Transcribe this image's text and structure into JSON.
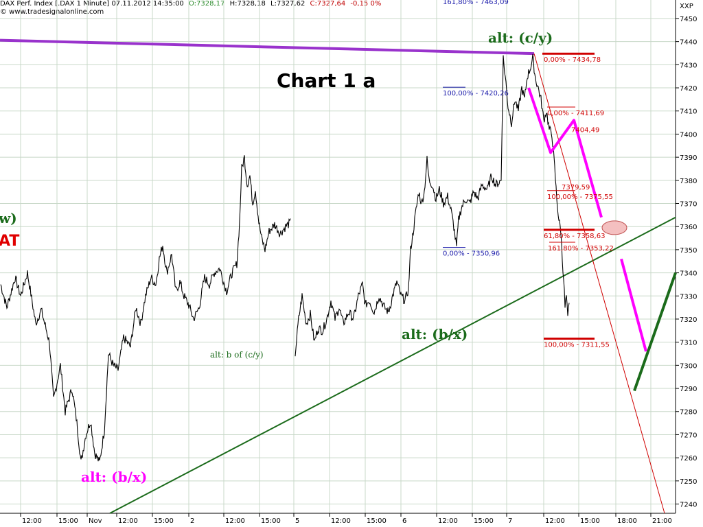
{
  "header": {
    "title": "DAX Perf. Index [.DAX  1 Minute] 07.11.2012 14:35:00",
    "open": "O:7328,17",
    "high": "H:7328,18",
    "low": "L:7327,62",
    "close": "C:7327,64",
    "change": "-0,15 0%",
    "copyright": "© www.tradesignalonline.com",
    "axis_label": "XXP"
  },
  "colors": {
    "price": "#000000",
    "grid": "#c8d8c8",
    "purple_trend": "#9933cc",
    "green_trend": "#1b6b1b",
    "magenta": "#ff00ff",
    "fib_red": "#d00000",
    "fib_blue": "#1a1aaa",
    "ellipse": "#f4c0c0"
  },
  "chart_data": {
    "type": "line",
    "title": "Chart 1 a",
    "ylim": [
      7236,
      7458
    ],
    "yticks": [
      7240,
      7250,
      7260,
      7270,
      7280,
      7290,
      7300,
      7310,
      7320,
      7330,
      7340,
      7350,
      7360,
      7370,
      7380,
      7390,
      7400,
      7410,
      7420,
      7430,
      7440,
      7450
    ],
    "xticks": [
      "12:00",
      "15:00",
      "Nov",
      "12:00",
      "15:00",
      "2",
      "12:00",
      "15:00",
      "5",
      "12:00",
      "15:00",
      "6",
      "12:00",
      "15:00",
      "7",
      "12:00",
      "15:00",
      "18:00",
      "21:00"
    ],
    "series": [
      {
        "values": [
          [
            1,
            7335
          ],
          [
            10,
            7325
          ],
          [
            22,
            7338
          ],
          [
            30,
            7330
          ],
          [
            40,
            7340
          ],
          [
            52,
            7318
          ],
          [
            60,
            7324
          ],
          [
            72,
            7310
          ],
          [
            78,
            7285
          ],
          [
            88,
            7300
          ],
          [
            95,
            7280
          ],
          [
            105,
            7290
          ],
          [
            112,
            7275
          ],
          [
            118,
            7258
          ],
          [
            125,
            7270
          ],
          [
            132,
            7276
          ],
          [
            138,
            7262
          ],
          [
            145,
            7258
          ],
          [
            152,
            7272
          ],
          [
            158,
            7305
          ],
          [
            165,
            7300
          ],
          [
            172,
            7298
          ],
          [
            180,
            7312
          ],
          [
            190,
            7308
          ],
          [
            198,
            7325
          ],
          [
            205,
            7318
          ],
          [
            212,
            7330
          ],
          [
            220,
            7338
          ],
          [
            227,
            7335
          ],
          [
            232,
            7346
          ],
          [
            237,
            7352
          ],
          [
            243,
            7340
          ],
          [
            250,
            7348
          ],
          [
            256,
            7332
          ],
          [
            262,
            7336
          ],
          [
            268,
            7330
          ],
          [
            275,
            7326
          ],
          [
            282,
            7320
          ],
          [
            290,
            7325
          ],
          [
            298,
            7338
          ],
          [
            305,
            7335
          ],
          [
            312,
            7340
          ],
          [
            320,
            7342
          ],
          [
            330,
            7332
          ],
          [
            338,
            7340
          ],
          [
            345,
            7344
          ],
          [
            349,
            7362
          ],
          [
            352,
            7385
          ],
          [
            356,
            7390
          ],
          [
            360,
            7378
          ],
          [
            364,
            7382
          ],
          [
            368,
            7370
          ],
          [
            372,
            7376
          ],
          [
            377,
            7362
          ],
          [
            381,
            7355
          ],
          [
            386,
            7350
          ],
          [
            392,
            7358
          ],
          [
            400,
            7361
          ],
          [
            408,
            7357
          ],
          [
            416,
            7360
          ],
          [
            424,
            7362
          ],
          [
            430,
            7305
          ],
          [
            435,
            7320
          ],
          [
            440,
            7330
          ],
          [
            446,
            7318
          ],
          [
            452,
            7322
          ],
          [
            458,
            7310
          ],
          [
            463,
            7316
          ],
          [
            470,
            7315
          ],
          [
            476,
            7320
          ],
          [
            482,
            7328
          ],
          [
            488,
            7320
          ],
          [
            494,
            7325
          ],
          [
            500,
            7318
          ],
          [
            508,
            7323
          ],
          [
            515,
            7320
          ],
          [
            522,
            7330
          ],
          [
            528,
            7335
          ],
          [
            532,
            7326
          ],
          [
            538,
            7328
          ],
          [
            545,
            7323
          ],
          [
            552,
            7330
          ],
          [
            560,
            7325
          ],
          [
            566,
            7323
          ],
          [
            572,
            7330
          ],
          [
            578,
            7336
          ],
          [
            584,
            7330
          ],
          [
            590,
            7328
          ],
          [
            595,
            7333
          ],
          [
            598,
            7350
          ],
          [
            602,
            7358
          ],
          [
            605,
            7365
          ],
          [
            610,
            7375
          ],
          [
            614,
            7370
          ],
          [
            618,
            7375
          ],
          [
            622,
            7389
          ],
          [
            625,
            7380
          ],
          [
            630,
            7378
          ],
          [
            635,
            7372
          ],
          [
            640,
            7376
          ],
          [
            646,
            7370
          ],
          [
            652,
            7373
          ],
          [
            657,
            7367
          ],
          [
            661,
            7360
          ],
          [
            665,
            7351
          ],
          [
            668,
            7363
          ],
          [
            672,
            7368
          ],
          [
            678,
            7372
          ],
          [
            684,
            7370
          ],
          [
            690,
            7375
          ],
          [
            696,
            7372
          ],
          [
            702,
            7378
          ],
          [
            710,
            7376
          ],
          [
            716,
            7382
          ],
          [
            722,
            7378
          ],
          [
            730,
            7380
          ],
          [
            733,
            7433
          ],
          [
            737,
            7422
          ],
          [
            740,
            7412
          ],
          [
            745,
            7405
          ],
          [
            750,
            7415
          ],
          [
            755,
            7410
          ],
          [
            760,
            7420
          ],
          [
            764,
            7415
          ],
          [
            768,
            7425
          ],
          [
            772,
            7428
          ],
          [
            776,
            7433
          ],
          [
            780,
            7424
          ],
          [
            784,
            7420
          ],
          [
            788,
            7415
          ],
          [
            792,
            7406
          ],
          [
            796,
            7410
          ],
          [
            800,
            7402
          ],
          [
            804,
            7400
          ],
          [
            808,
            7385
          ],
          [
            811,
            7372
          ],
          [
            814,
            7363
          ],
          [
            817,
            7358
          ],
          [
            819,
            7346
          ],
          [
            821,
            7338
          ],
          [
            823,
            7325
          ],
          [
            825,
            7330
          ],
          [
            827,
            7320
          ],
          [
            829,
            7327
          ]
        ]
      }
    ],
    "trendlines": [
      {
        "from": [
          0,
          7440.6
        ],
        "to": [
          778,
          7434.8
        ]
      },
      {
        "from": [
          160,
          7236
        ],
        "to": [
          984,
          7364
        ]
      }
    ],
    "projection": [
      [
        770,
        7420
      ],
      [
        802,
        7392
      ],
      [
        836,
        7406
      ],
      [
        876,
        7364
      ]
    ],
    "projection2": [
      [
        905,
        7346
      ],
      [
        941,
        7306
      ]
    ],
    "green_projection": [
      [
        924,
        7289
      ],
      [
        984,
        7340
      ]
    ],
    "fib_red": [
      {
        "label": "0,00% - 7434,78",
        "value": 7434.78
      },
      {
        "label": "0,00% - 7411,69",
        "value": 7411.69
      },
      {
        "label": "7404,49",
        "value": 7404.49
      },
      {
        "label": "7379,59",
        "value": 7379.59
      },
      {
        "label": "100,00% - 7375,55",
        "value": 7375.55
      },
      {
        "label": "61,80% - 7358,63",
        "value": 7358.63
      },
      {
        "label": "161,80% - 7353,22",
        "value": 7353.22
      },
      {
        "label": "100,00% - 7311,55",
        "value": 7311.55
      }
    ],
    "fib_blue": [
      {
        "label": "161,80% - 7463,09",
        "value": 7463.09
      },
      {
        "label": "100,00% - 7420,26",
        "value": 7420.26
      },
      {
        "label": "0,00% - 7350,96",
        "value": 7350.96
      }
    ],
    "annotations": [
      {
        "text": "alt: (c/y)",
        "color": "green"
      },
      {
        "text": "Chart 1 a",
        "color": "black"
      },
      {
        "text": "alt: (b/x)",
        "color": "magenta"
      },
      {
        "text": "alt: b of (c/y)",
        "color": "green"
      },
      {
        "text": "alt: (b/x)",
        "color": "green"
      },
      {
        "text": "w)",
        "color": "green"
      },
      {
        "text": "AT",
        "color": "red"
      }
    ]
  }
}
